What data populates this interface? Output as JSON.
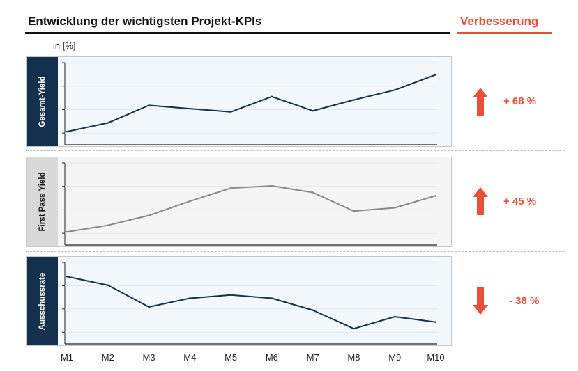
{
  "header": {
    "title": "Entwicklung der wichtigsten Projekt-KPIs",
    "side_title": "Verbesserung",
    "unit": "in [%]"
  },
  "colors": {
    "accent": "#e8503a",
    "navy": "#13304d",
    "grey_line": "#888888"
  },
  "chart_data": [
    {
      "type": "line",
      "name": "Gesamt-Yield",
      "categories": [
        "M1",
        "M2",
        "M3",
        "M4",
        "M5",
        "M6",
        "M7",
        "M8",
        "M9",
        "M10"
      ],
      "values": [
        12,
        20,
        36,
        33,
        30,
        44,
        31,
        41,
        50,
        64
      ],
      "ylim": [
        0,
        75
      ],
      "change": "+ 68 %",
      "direction": "up"
    },
    {
      "type": "line",
      "name": "First Pass Yield",
      "categories": [
        "M1",
        "M2",
        "M3",
        "M4",
        "M5",
        "M6",
        "M7",
        "M8",
        "M9",
        "M10"
      ],
      "values": [
        12,
        18,
        27,
        40,
        52,
        54,
        48,
        31,
        34,
        45
      ],
      "ylim": [
        0,
        75
      ],
      "change": "+ 45 %",
      "direction": "up"
    },
    {
      "type": "line",
      "name": "Ausschussrate",
      "categories": [
        "M1",
        "M2",
        "M3",
        "M4",
        "M5",
        "M6",
        "M7",
        "M8",
        "M9",
        "M10"
      ],
      "values": [
        62,
        54,
        34,
        42,
        45,
        42,
        31,
        14,
        25,
        20
      ],
      "ylim": [
        0,
        75
      ],
      "change": "- 38 %",
      "direction": "down"
    }
  ]
}
